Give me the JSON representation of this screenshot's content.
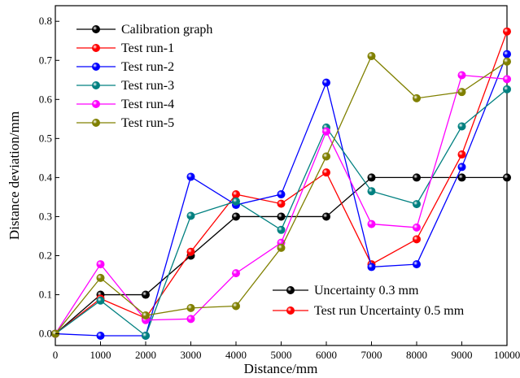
{
  "chart_data": {
    "type": "line",
    "xlabel": "Distance/mm",
    "ylabel": "Distance deviation/mm",
    "xlim": [
      0,
      10000
    ],
    "ylim": [
      -0.03,
      0.84
    ],
    "xticks": [
      0,
      1000,
      2000,
      3000,
      4000,
      5000,
      6000,
      7000,
      8000,
      9000,
      10000
    ],
    "yticks": [
      0.0,
      0.1,
      0.2,
      0.3,
      0.4,
      0.5,
      0.6,
      0.7,
      0.8
    ],
    "ytick_labels": [
      "0.0",
      "0.1",
      "0.2",
      "0.3",
      "0.4",
      "0.5",
      "0.6",
      "0.7",
      "0.8"
    ],
    "grid": false,
    "legend_position": "top-left",
    "x": [
      0,
      1000,
      2000,
      3000,
      4000,
      5000,
      6000,
      7000,
      8000,
      9000,
      10000
    ],
    "series": [
      {
        "name": "Calibration graph",
        "color": "#000000",
        "values": [
          0.0,
          0.1,
          0.1,
          0.2,
          0.3,
          0.3,
          0.3,
          0.4,
          0.4,
          0.4,
          0.4
        ]
      },
      {
        "name": "Test run-1",
        "color": "#ff0000",
        "values": [
          0.0,
          0.09,
          0.04,
          0.21,
          0.357,
          0.333,
          0.413,
          0.178,
          0.242,
          0.459,
          0.774
        ]
      },
      {
        "name": "Test run-2",
        "color": "#0000ff",
        "values": [
          0.0,
          -0.005,
          -0.005,
          0.402,
          0.33,
          0.357,
          0.643,
          0.171,
          0.178,
          0.427,
          0.716
        ]
      },
      {
        "name": "Test run-3",
        "color": "#008080",
        "values": [
          0.0,
          0.085,
          -0.005,
          0.302,
          0.339,
          0.266,
          0.528,
          0.365,
          0.332,
          0.531,
          0.626
        ]
      },
      {
        "name": "Test run-4",
        "color": "#ff00ff",
        "values": [
          0.0,
          0.178,
          0.035,
          0.038,
          0.155,
          0.233,
          0.518,
          0.281,
          0.272,
          0.662,
          0.652
        ]
      },
      {
        "name": "Test run-5",
        "color": "#808000",
        "values": [
          0.0,
          0.143,
          0.047,
          0.066,
          0.071,
          0.22,
          0.454,
          0.711,
          0.603,
          0.619,
          0.697
        ]
      }
    ],
    "legend_extra": [
      {
        "name": "Uncertainty 0.3 mm",
        "color": "#000000"
      },
      {
        "name": "Test run Uncertainty 0.5 mm",
        "color": "#ff0000"
      }
    ]
  }
}
